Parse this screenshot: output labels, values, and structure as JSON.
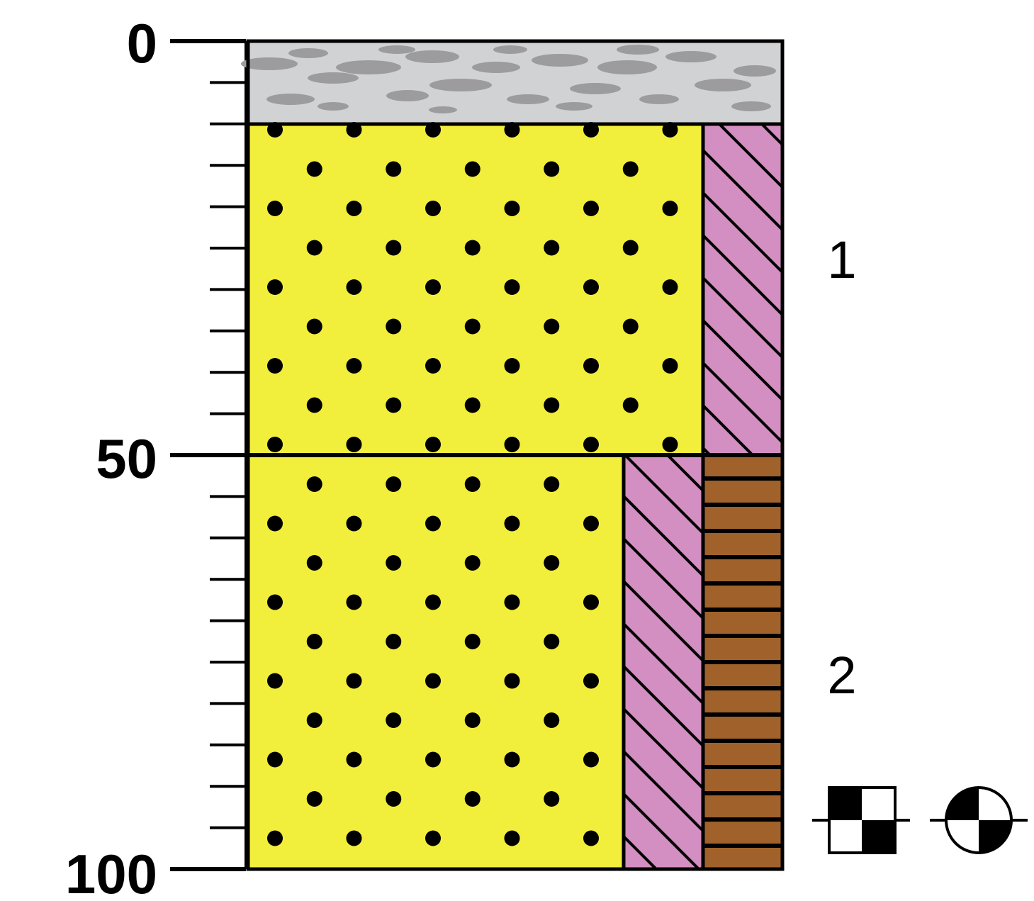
{
  "scale": {
    "labels": [
      {
        "depth": 0,
        "text": "0"
      },
      {
        "depth": 50,
        "text": "50"
      },
      {
        "depth": 100,
        "text": "100"
      }
    ],
    "minor_tick_step": 5
  },
  "layers": [
    {
      "id": "surface",
      "top": 0,
      "bottom": 10,
      "fill": "gray-mottled"
    },
    {
      "id": "unit-1",
      "top": 10,
      "bottom": 50,
      "label": "1",
      "columns": [
        "yellow-dotted",
        "pink-hatched"
      ]
    },
    {
      "id": "unit-2",
      "top": 50,
      "bottom": 100,
      "label": "2",
      "columns": [
        "yellow-dotted",
        "pink-hatched",
        "brown-bricked"
      ]
    }
  ],
  "colors": {
    "yellow": "#f2ee3c",
    "pink": "#d38fc1",
    "brown": "#a0622a",
    "gray": "#d1d2d4",
    "gray_mottle": "#9c9c9e",
    "line": "#000000"
  },
  "symbols": [
    {
      "name": "checkered-square-symbol"
    },
    {
      "name": "quartered-circle-symbol"
    }
  ]
}
